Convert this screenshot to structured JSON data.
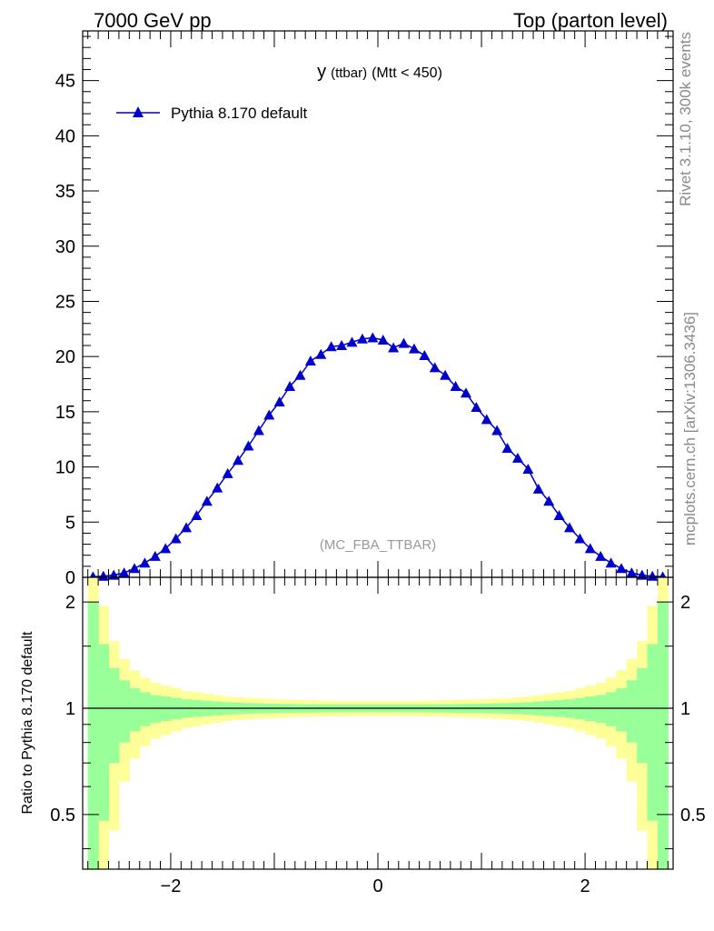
{
  "header": {
    "left": "7000 GeV pp",
    "right": "Top (parton level)"
  },
  "side_labels": {
    "rivet": "Rivet 3.1.10,  300k events",
    "mcplots": "mcplots.cern.ch [arXiv:1306.3436]"
  },
  "chart_data": [
    {
      "type": "line",
      "title_main": "y",
      "title_small": "(ttbar)",
      "title_rest": "(Mtt < 450)",
      "watermark": "(MC_FBA_TTBAR)",
      "xlim": [
        -2.85,
        2.85
      ],
      "ylim": [
        0,
        49.5
      ],
      "yticks": [
        0,
        5,
        10,
        15,
        20,
        25,
        30,
        35,
        40,
        45
      ],
      "xlabel": "",
      "ylabel": "",
      "legend_position": "top-left",
      "series": [
        {
          "name": "Pythia 8.170 default",
          "color": "#0000cc",
          "marker": "triangle-up",
          "x": [
            -2.75,
            -2.65,
            -2.55,
            -2.45,
            -2.35,
            -2.25,
            -2.15,
            -2.05,
            -1.95,
            -1.85,
            -1.75,
            -1.65,
            -1.55,
            -1.45,
            -1.35,
            -1.25,
            -1.15,
            -1.05,
            -0.95,
            -0.85,
            -0.75,
            -0.65,
            -0.55,
            -0.45,
            -0.35,
            -0.25,
            -0.15,
            -0.05,
            0.05,
            0.15,
            0.25,
            0.35,
            0.45,
            0.55,
            0.65,
            0.75,
            0.85,
            0.95,
            1.05,
            1.15,
            1.25,
            1.35,
            1.45,
            1.55,
            1.65,
            1.75,
            1.85,
            1.95,
            2.05,
            2.15,
            2.25,
            2.35,
            2.45,
            2.55,
            2.65,
            2.75
          ],
          "y": [
            0.05,
            0.1,
            0.2,
            0.4,
            0.8,
            1.3,
            1.9,
            2.6,
            3.5,
            4.5,
            5.6,
            6.9,
            8.1,
            9.4,
            10.6,
            11.9,
            13.3,
            14.7,
            15.9,
            17.3,
            18.3,
            19.6,
            20.2,
            20.9,
            21.0,
            21.3,
            21.6,
            21.7,
            21.5,
            20.8,
            21.2,
            20.7,
            20.1,
            19.0,
            18.3,
            17.3,
            16.7,
            15.4,
            14.3,
            13.3,
            11.7,
            10.8,
            9.8,
            8.0,
            6.9,
            5.6,
            4.5,
            3.5,
            2.6,
            1.9,
            1.3,
            0.8,
            0.4,
            0.2,
            0.1,
            0.05
          ]
        }
      ]
    },
    {
      "type": "area",
      "ylabel": "Ratio to Pythia 8.170 default",
      "ylim": [
        0.35,
        2.35
      ],
      "log_y": true,
      "yticks": [
        0.5,
        1,
        2
      ],
      "xticks": [
        -2,
        0,
        2
      ],
      "xlim": [
        -2.85,
        2.85
      ],
      "reference_line": 1,
      "band_colors": {
        "inner": "#99ff99",
        "outer": "#ffff99"
      },
      "bins_x": [
        -2.75,
        -2.65,
        -2.55,
        -2.45,
        -2.35,
        -2.25,
        -2.15,
        -2.05,
        -1.95,
        -1.85,
        -1.75,
        -1.65,
        -1.55,
        -1.45,
        -1.35,
        -1.25,
        -1.15,
        -1.05,
        -0.95,
        -0.85,
        -0.75,
        -0.65,
        -0.55,
        -0.45,
        -0.35,
        -0.25,
        -0.15,
        -0.05,
        0.05,
        0.15,
        0.25,
        0.35,
        0.45,
        0.55,
        0.65,
        0.75,
        0.85,
        0.95,
        1.05,
        1.15,
        1.25,
        1.35,
        1.45,
        1.55,
        1.65,
        1.75,
        1.85,
        1.95,
        2.05,
        2.15,
        2.25,
        2.35,
        2.45,
        2.55,
        2.65,
        2.75
      ],
      "inner_rel": [
        1.0,
        0.52,
        0.3,
        0.2,
        0.14,
        0.11,
        0.09,
        0.08,
        0.07,
        0.06,
        0.055,
        0.05,
        0.045,
        0.04,
        0.037,
        0.035,
        0.033,
        0.031,
        0.03,
        0.029,
        0.028,
        0.027,
        0.026,
        0.026,
        0.025,
        0.025,
        0.025,
        0.025,
        0.025,
        0.025,
        0.025,
        0.025,
        0.026,
        0.026,
        0.027,
        0.028,
        0.029,
        0.03,
        0.031,
        0.033,
        0.035,
        0.037,
        0.04,
        0.045,
        0.05,
        0.055,
        0.06,
        0.07,
        0.08,
        0.09,
        0.11,
        0.14,
        0.2,
        0.3,
        0.52,
        1.0
      ],
      "outer_rel": [
        2.0,
        0.95,
        0.55,
        0.38,
        0.28,
        0.22,
        0.18,
        0.16,
        0.14,
        0.12,
        0.11,
        0.1,
        0.09,
        0.08,
        0.074,
        0.07,
        0.066,
        0.062,
        0.06,
        0.058,
        0.056,
        0.054,
        0.052,
        0.052,
        0.05,
        0.05,
        0.05,
        0.05,
        0.05,
        0.05,
        0.05,
        0.05,
        0.052,
        0.052,
        0.054,
        0.056,
        0.058,
        0.06,
        0.062,
        0.066,
        0.07,
        0.074,
        0.08,
        0.09,
        0.1,
        0.11,
        0.12,
        0.14,
        0.16,
        0.18,
        0.22,
        0.28,
        0.38,
        0.55,
        0.95,
        2.0
      ]
    }
  ]
}
